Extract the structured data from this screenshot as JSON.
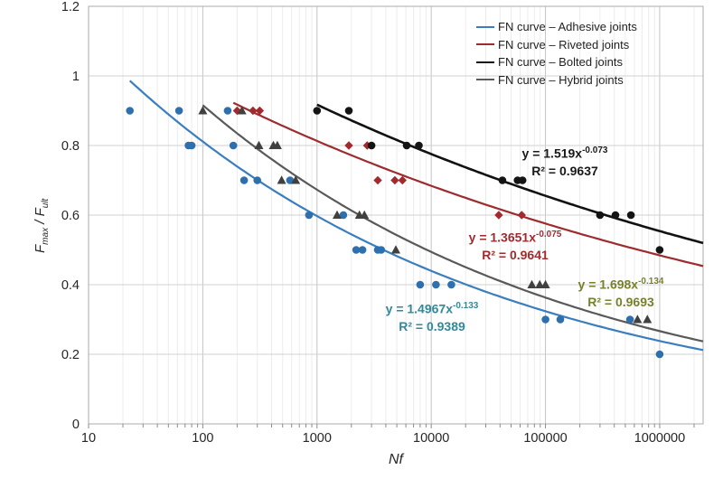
{
  "axes": {
    "x_label": "Nf",
    "y_label_f1": "F",
    "y_label_s1": "max",
    "y_label_sep": " / ",
    "y_label_f2": "F",
    "y_label_s2": "ult"
  },
  "chart_data": {
    "type": "scatter",
    "title": "",
    "xlabel": "Nf",
    "ylabel": "Fmax / Fult",
    "x_scale": "log",
    "xlim": [
      10,
      2400000
    ],
    "ylim": [
      0,
      1.2
    ],
    "grid": true,
    "legend_position": "top-right-inside",
    "x_ticks": {
      "values": [
        10,
        100,
        1000,
        10000,
        100000,
        1000000
      ],
      "labels": [
        "10",
        "100",
        "1000",
        "10000",
        "100000",
        "1000000"
      ]
    },
    "y_ticks": {
      "values": [
        0,
        0.2,
        0.4,
        0.6,
        0.8,
        1,
        1.2
      ],
      "labels": [
        "0",
        "0.2",
        "0.4",
        "0.6",
        "0.8",
        "1",
        "1.2"
      ]
    },
    "style": {
      "grid_minor": "#ececec",
      "grid_decade": "#c4c4c4",
      "grid_horizontal": "#d2d2d2",
      "plot_border": "#ababab",
      "tick_mark": "#8a8a8a",
      "tick_label_color": "#262626"
    },
    "series": [
      {
        "id": "adhesive",
        "name": "FN curve – Adhesive joints",
        "marker": "circle",
        "color": "#2e6fae",
        "line_color": "#3a7ebf",
        "line_width": 2.2,
        "fit": {
          "a": 1.4967,
          "b": -0.133,
          "x_start": 23,
          "x_end": 2400000,
          "eq_base": "y = 1.4967x",
          "eq_exp": "-0.133",
          "r2_label": "R² = 0.9389",
          "text_color": "#2f8a99"
        },
        "points": [
          [
            23,
            0.9
          ],
          [
            62,
            0.9
          ],
          [
            165,
            0.9
          ],
          [
            75,
            0.8
          ],
          [
            80,
            0.8
          ],
          [
            185,
            0.8
          ],
          [
            230,
            0.7
          ],
          [
            300,
            0.7
          ],
          [
            580,
            0.7
          ],
          [
            850,
            0.6
          ],
          [
            1700,
            0.6
          ],
          [
            2200,
            0.5
          ],
          [
            2500,
            0.5
          ],
          [
            3400,
            0.5
          ],
          [
            3650,
            0.5
          ],
          [
            8000,
            0.4
          ],
          [
            11000,
            0.4
          ],
          [
            15000,
            0.4
          ],
          [
            100000,
            0.3
          ],
          [
            135000,
            0.3
          ],
          [
            550000,
            0.3
          ],
          [
            1000000,
            0.2
          ]
        ]
      },
      {
        "id": "riveted",
        "name": "FN curve – Riveted joints",
        "marker": "diamond",
        "color": "#a2292d",
        "line_color": "#9e2b2e",
        "line_width": 2.2,
        "fit": {
          "a": 1.3651,
          "b": -0.075,
          "x_start": 185,
          "x_end": 2400000,
          "eq_base": "y = 1.3651x",
          "eq_exp": "-0.075",
          "r2_label": "R² = 0.9641",
          "text_color": "#9e2b2e"
        },
        "points": [
          [
            200,
            0.9
          ],
          [
            275,
            0.9
          ],
          [
            315,
            0.9
          ],
          [
            1900,
            0.8
          ],
          [
            2750,
            0.8
          ],
          [
            3400,
            0.7
          ],
          [
            4800,
            0.7
          ],
          [
            5600,
            0.7
          ],
          [
            39000,
            0.6
          ],
          [
            62000,
            0.6
          ]
        ]
      },
      {
        "id": "bolted",
        "name": "FN curve – Bolted joints",
        "marker": "circle",
        "color": "#141414",
        "line_color": "#111111",
        "line_width": 2.6,
        "fit": {
          "a": 1.519,
          "b": -0.073,
          "x_start": 1000,
          "x_end": 2400000,
          "eq_base": "y = 1.519x",
          "eq_exp": "-0.073",
          "r2_label": "R² = 0.9637",
          "text_color": "#1a1a1a"
        },
        "points": [
          [
            1000,
            0.9
          ],
          [
            1900,
            0.9
          ],
          [
            3000,
            0.8
          ],
          [
            6100,
            0.8
          ],
          [
            7800,
            0.8
          ],
          [
            42000,
            0.7
          ],
          [
            57000,
            0.7
          ],
          [
            63000,
            0.7
          ],
          [
            300000,
            0.6
          ],
          [
            410000,
            0.6
          ],
          [
            560000,
            0.6
          ],
          [
            1000000,
            0.5
          ]
        ]
      },
      {
        "id": "hybrid",
        "name": "FN curve – Hybrid joints",
        "marker": "triangle",
        "color": "#404040",
        "line_color": "#595959",
        "line_width": 2.2,
        "fit": {
          "a": 1.698,
          "b": -0.134,
          "x_start": 100,
          "x_end": 2400000,
          "eq_base": "y = 1.698x",
          "eq_exp": "-0.134",
          "r2_label": "R² = 0.9693",
          "text_color": "#76802d"
        },
        "points": [
          [
            100,
            0.9
          ],
          [
            220,
            0.9
          ],
          [
            310,
            0.8
          ],
          [
            415,
            0.8
          ],
          [
            450,
            0.8
          ],
          [
            490,
            0.7
          ],
          [
            650,
            0.7
          ],
          [
            1500,
            0.6
          ],
          [
            2350,
            0.6
          ],
          [
            2600,
            0.6
          ],
          [
            4900,
            0.5
          ],
          [
            76000,
            0.4
          ],
          [
            89000,
            0.4
          ],
          [
            100000,
            0.4
          ],
          [
            640000,
            0.3
          ],
          [
            780000,
            0.3
          ]
        ]
      }
    ]
  }
}
